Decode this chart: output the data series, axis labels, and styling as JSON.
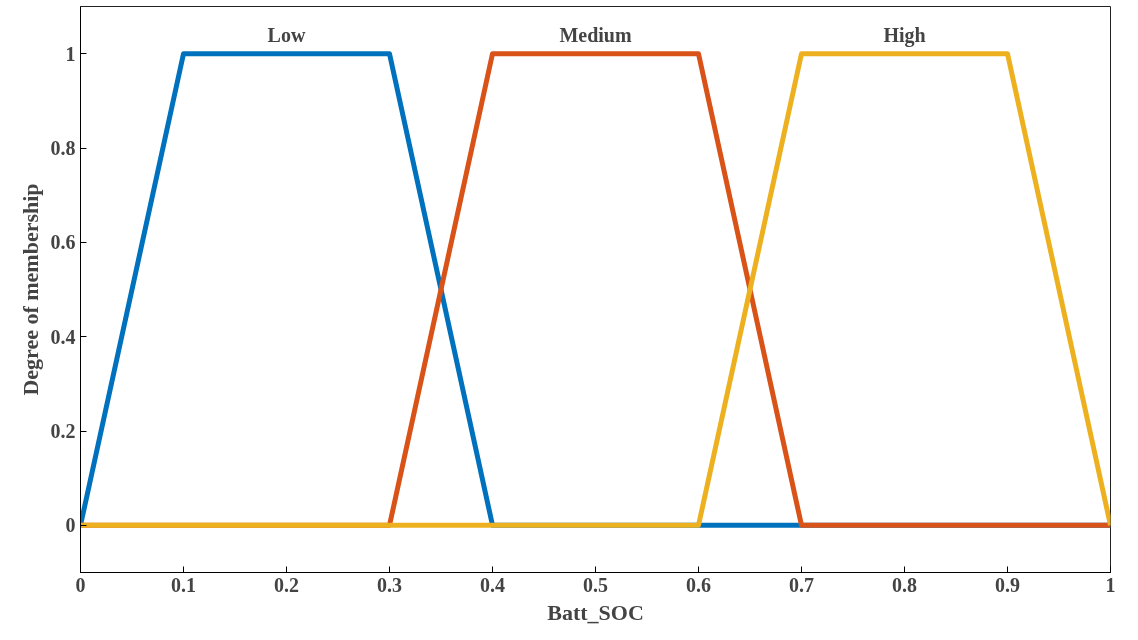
{
  "chart_data": {
    "type": "line",
    "xlabel": "Batt_SOC",
    "ylabel": "Degree of membership",
    "xlim": [
      0,
      1
    ],
    "ylim": [
      -0.1,
      1.1
    ],
    "xticks": [
      0,
      0.1,
      0.2,
      0.3,
      0.4,
      0.5,
      0.6,
      0.7,
      0.8,
      0.9,
      1
    ],
    "yticks": [
      0,
      0.2,
      0.4,
      0.6,
      0.8,
      1
    ],
    "grid": false,
    "marker": "none",
    "line_style": "solid",
    "series": [
      {
        "name": "Low",
        "color": "#0072bd",
        "x": [
          0,
          0.1,
          0.3,
          0.4,
          1
        ],
        "values": [
          0,
          1,
          1,
          0,
          0
        ]
      },
      {
        "name": "Medium",
        "color": "#d95319",
        "x": [
          0,
          0.3,
          0.4,
          0.6,
          0.7,
          1
        ],
        "values": [
          0,
          0,
          1,
          1,
          0,
          0
        ]
      },
      {
        "name": "High",
        "color": "#edb120",
        "x": [
          0,
          0.6,
          0.7,
          0.9,
          1
        ],
        "values": [
          0,
          0,
          1,
          1,
          0
        ]
      }
    ]
  }
}
